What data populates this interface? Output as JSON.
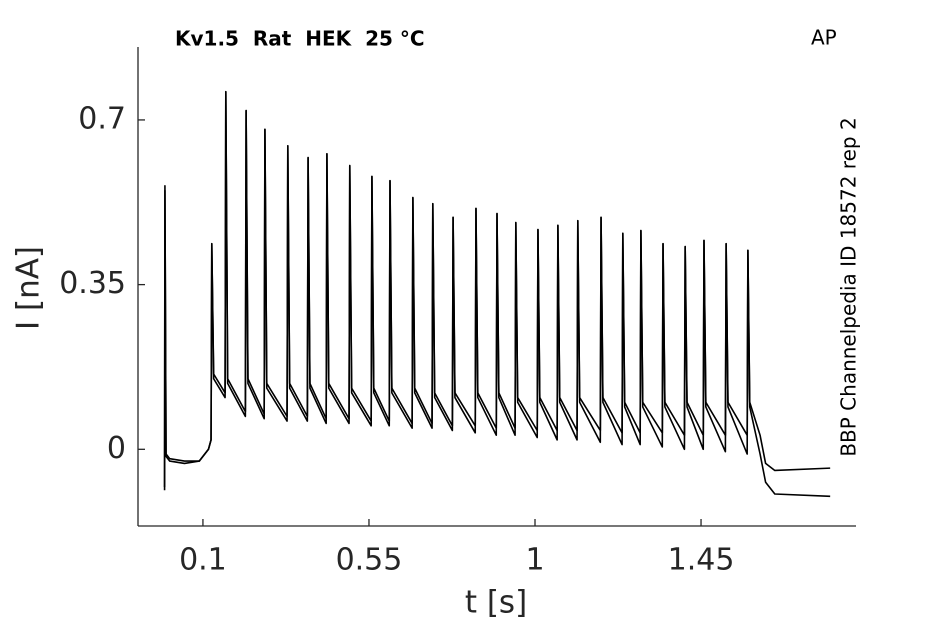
{
  "chart_data": {
    "type": "line",
    "title": "Kv1.5  Rat  HEK  25 °C",
    "annotation": "AP",
    "side_label": "BBP Channelpedia ID 18572 rep 2",
    "x_label": "t [s]",
    "y_label": "I [nA]",
    "xlim": [
      -0.076,
      1.87
    ],
    "ylim": [
      -0.163,
      0.855
    ],
    "xticks": [
      0.1,
      0.55,
      1,
      1.45
    ],
    "yticks": [
      0,
      0.35,
      0.7
    ],
    "x": [
      -0.004,
      -0.003,
      0.0,
      0.01,
      0.05,
      0.09,
      0.115,
      0.122,
      0.124,
      0.129,
      0.16,
      0.162,
      0.167,
      0.215,
      0.217,
      0.222,
      0.266,
      0.268,
      0.273,
      0.328,
      0.33,
      0.335,
      0.383,
      0.385,
      0.39,
      0.434,
      0.436,
      0.441,
      0.496,
      0.498,
      0.503,
      0.556,
      0.558,
      0.563,
      0.605,
      0.607,
      0.612,
      0.667,
      0.669,
      0.674,
      0.721,
      0.723,
      0.728,
      0.776,
      0.778,
      0.783,
      0.838,
      0.84,
      0.845,
      0.895,
      0.897,
      0.902,
      0.946,
      0.948,
      0.953,
      1.006,
      1.008,
      1.013,
      1.06,
      1.062,
      1.067,
      1.114,
      1.116,
      1.121,
      1.177,
      1.179,
      1.184,
      1.236,
      1.238,
      1.243,
      1.285,
      1.287,
      1.292,
      1.345,
      1.347,
      1.352,
      1.405,
      1.407,
      1.412,
      1.456,
      1.458,
      1.463,
      1.516,
      1.518,
      1.523,
      1.575,
      1.577,
      1.582,
      1.61,
      1.625,
      1.65,
      1.8
    ],
    "series": [
      {
        "color": "#000000",
        "values": [
          -0.087,
          0.56,
          -0.01,
          -0.02,
          -0.025,
          -0.025,
          0.0,
          0.02,
          0.437,
          0.16,
          0.12,
          0.76,
          0.15,
          0.08,
          0.72,
          0.15,
          0.075,
          0.68,
          0.14,
          0.07,
          0.645,
          0.14,
          0.07,
          0.62,
          0.14,
          0.065,
          0.628,
          0.14,
          0.065,
          0.603,
          0.13,
          0.06,
          0.58,
          0.13,
          0.06,
          0.571,
          0.13,
          0.055,
          0.535,
          0.13,
          0.055,
          0.522,
          0.12,
          0.05,
          0.493,
          0.12,
          0.05,
          0.512,
          0.12,
          0.045,
          0.501,
          0.12,
          0.045,
          0.482,
          0.11,
          0.04,
          0.467,
          0.11,
          0.04,
          0.476,
          0.11,
          0.04,
          0.486,
          0.11,
          0.04,
          0.493,
          0.11,
          0.035,
          0.459,
          0.1,
          0.035,
          0.465,
          0.1,
          0.035,
          0.437,
          0.1,
          0.03,
          0.431,
          0.1,
          0.03,
          0.444,
          0.1,
          0.03,
          0.437,
          0.1,
          0.03,
          0.423,
          0.1,
          0.03,
          -0.03,
          -0.045,
          -0.04
        ]
      },
      {
        "color": "#000000",
        "values": [
          -0.08,
          0.55,
          -0.015,
          -0.025,
          -0.03,
          -0.025,
          0.0,
          0.02,
          0.437,
          0.15,
          0.11,
          0.76,
          0.14,
          0.07,
          0.72,
          0.14,
          0.065,
          0.68,
          0.13,
          0.06,
          0.645,
          0.13,
          0.06,
          0.62,
          0.13,
          0.055,
          0.628,
          0.13,
          0.055,
          0.603,
          0.12,
          0.05,
          0.58,
          0.12,
          0.05,
          0.571,
          0.12,
          0.045,
          0.535,
          0.12,
          0.045,
          0.522,
          0.11,
          0.04,
          0.493,
          0.11,
          0.035,
          0.512,
          0.11,
          0.03,
          0.501,
          0.11,
          0.03,
          0.482,
          0.1,
          0.025,
          0.467,
          0.1,
          0.02,
          0.476,
          0.1,
          0.02,
          0.486,
          0.1,
          0.015,
          0.493,
          0.1,
          0.01,
          0.459,
          0.09,
          0.01,
          0.465,
          0.09,
          0.005,
          0.437,
          0.09,
          0.0,
          0.431,
          0.09,
          0.0,
          0.444,
          0.09,
          -0.005,
          0.437,
          0.09,
          -0.01,
          0.423,
          0.09,
          -0.01,
          -0.07,
          -0.095,
          -0.1
        ]
      }
    ]
  }
}
